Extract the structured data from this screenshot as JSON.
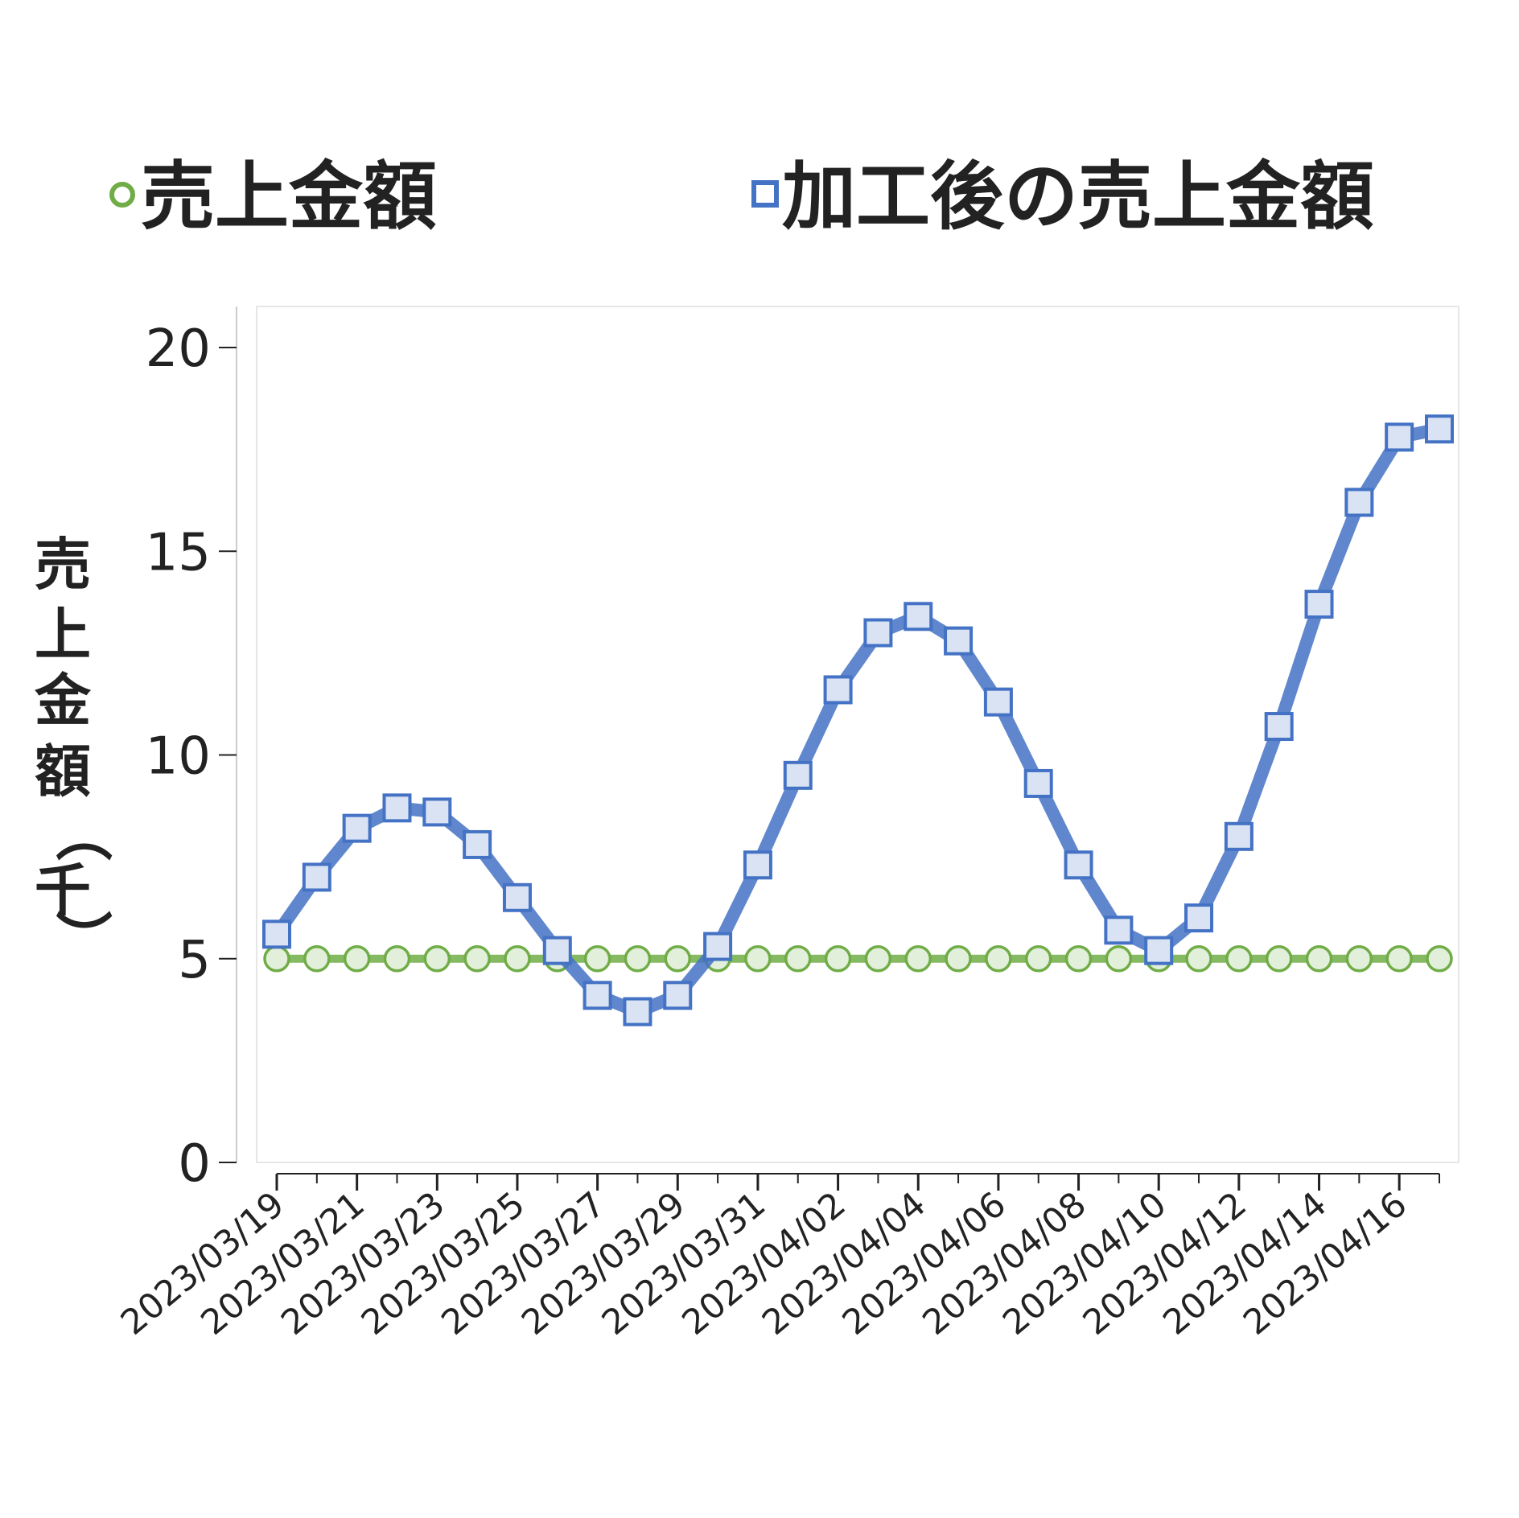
{
  "chart_data": {
    "type": "line",
    "title": "",
    "xlabel": "",
    "ylabel": "売上金額（千）",
    "ylim": [
      0,
      20
    ],
    "y_ticks": [
      "0",
      "5",
      "10",
      "15",
      "20"
    ],
    "x": [
      "2023/03/19",
      "2023/03/20",
      "2023/03/21",
      "2023/03/22",
      "2023/03/23",
      "2023/03/24",
      "2023/03/25",
      "2023/03/26",
      "2023/03/27",
      "2023/03/28",
      "2023/03/29",
      "2023/03/30",
      "2023/03/31",
      "2023/04/01",
      "2023/04/02",
      "2023/04/03",
      "2023/04/04",
      "2023/04/05",
      "2023/04/06",
      "2023/04/07",
      "2023/04/08",
      "2023/04/09",
      "2023/04/10",
      "2023/04/11",
      "2023/04/12",
      "2023/04/13",
      "2023/04/14",
      "2023/04/15",
      "2023/04/16",
      "2023/04/17"
    ],
    "x_tick_labels": [
      "2023/03/19",
      "2023/03/21",
      "2023/03/23",
      "2023/03/25",
      "2023/03/27",
      "2023/03/29",
      "2023/03/31",
      "2023/04/02",
      "2023/04/04",
      "2023/04/06",
      "2023/04/08",
      "2023/04/10",
      "2023/04/12",
      "2023/04/14",
      "2023/04/16"
    ],
    "legend_position": "top",
    "grid": false,
    "series": [
      {
        "name": "売上金額",
        "color": "#70ad47",
        "marker": "circle",
        "values": [
          5,
          5,
          5,
          5,
          5,
          5,
          5,
          5,
          5,
          5,
          5,
          5,
          5,
          5,
          5,
          5,
          5,
          5,
          5,
          5,
          5,
          5,
          5,
          5,
          5,
          5,
          5,
          5,
          5,
          5
        ]
      },
      {
        "name": "加工後の売上金額",
        "color": "#4472c4",
        "marker": "square",
        "values": [
          5.6,
          7.0,
          8.2,
          8.7,
          8.6,
          7.8,
          6.5,
          5.2,
          4.1,
          3.7,
          4.1,
          5.3,
          7.3,
          9.5,
          11.6,
          13.0,
          13.4,
          12.8,
          11.3,
          9.3,
          7.3,
          5.7,
          5.2,
          6.0,
          8.0,
          10.7,
          13.7,
          16.2,
          17.8,
          18.0
        ]
      }
    ]
  }
}
